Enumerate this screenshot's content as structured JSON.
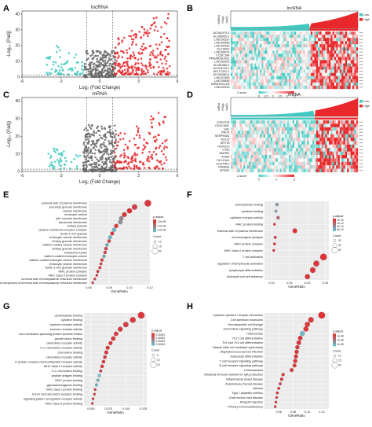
{
  "panel_letters": [
    "A",
    "B",
    "C",
    "D",
    "E",
    "F",
    "G",
    "H"
  ],
  "colors": {
    "up": "#e8282b",
    "down": "#3fc9c0",
    "ns": "#6a6a6a",
    "low": "#3fc9c0",
    "high": "#e8282b",
    "heat_low": "#3fc9c0",
    "heat_mid": "#ffffff",
    "heat_high": "#e8282b",
    "dot_high": "#e8282b",
    "dot_low": "#5fc9d8"
  },
  "chart_data": [
    {
      "type": "scatter",
      "panel": "A",
      "title": "lncRNA",
      "xlabel": "Log₂ (Fold Change)",
      "ylabel": "-Log₁₀ (Padj)",
      "xlim": [
        -6,
        6
      ],
      "ylim": [
        0,
        42
      ],
      "xticks": [
        "-6",
        "-3",
        "0",
        "3",
        "6"
      ],
      "yticks": [
        "0",
        "10",
        "20",
        "30",
        "40"
      ],
      "thresholds": {
        "x": [
          -1,
          1
        ],
        "y": 1.3
      },
      "groups": [
        {
          "name": "",
          "color_key": "down",
          "xrange": [
            -4.2,
            -1.05
          ],
          "yrange": [
            1.5,
            22
          ],
          "count": 70
        },
        {
          "name": "",
          "color_key": "ns",
          "xrange": [
            -1.2,
            1.2
          ],
          "yrange": [
            0,
            14
          ],
          "count": 260
        },
        {
          "name": "",
          "color_key": "up",
          "xrange": [
            1.05,
            5.4
          ],
          "yrange": [
            1.5,
            38
          ],
          "count": 260
        }
      ]
    },
    {
      "type": "heatmap",
      "panel": "B",
      "title": "lncRNA",
      "top_ylabel": "lncRNA\nHSgo\n(log2)",
      "legend": [
        "Low",
        "High"
      ],
      "colorbar_label": "Z-score",
      "colorbar_ticks": [
        "-5",
        "-2.5",
        "0",
        "2.5",
        "5",
        "7.5"
      ],
      "rows": [
        "AC061975.1",
        "AL356055.1",
        "LINC00337",
        "LINC00558",
        "LINC02432",
        "SLC26A7",
        "LINC00974",
        "CCDC184",
        "PRKAR2B-AS1",
        "LINC00592",
        "AL451085.1",
        "AC015725.1",
        "AP127332.1",
        "AC092580.4",
        "LINC01285",
        "LINC00858",
        "MIR31HG-AS",
        "LINC00933"
      ],
      "sig": "***",
      "low_fraction": 0.62
    },
    {
      "type": "scatter",
      "panel": "C",
      "title": "mRNA",
      "xlabel": "Log₂ (Fold Change)",
      "ylabel": "-Log₁₀ (Padj)",
      "xlim": [
        -6,
        6
      ],
      "ylim": [
        0,
        42
      ],
      "xticks": [
        "-6",
        "-3",
        "0",
        "3",
        "6"
      ],
      "yticks": [
        "0",
        "10",
        "20",
        "30",
        "40"
      ],
      "thresholds": {
        "x": [
          -1,
          1
        ],
        "y": 1.3
      },
      "groups": [
        {
          "name": "",
          "color_key": "down",
          "xrange": [
            -4.0,
            -1.05
          ],
          "yrange": [
            1.5,
            14
          ],
          "count": 45
        },
        {
          "name": "",
          "color_key": "ns",
          "xrange": [
            -1.3,
            1.3
          ],
          "yrange": [
            0,
            22
          ],
          "count": 330
        },
        {
          "name": "",
          "color_key": "up",
          "xrange": [
            1.05,
            5.2
          ],
          "yrange": [
            1.5,
            32
          ],
          "count": 170
        }
      ]
    },
    {
      "type": "heatmap",
      "panel": "D",
      "title": "mRNA",
      "top_ylabel": "mRNA\nHSgo\n(log2)",
      "legend": [
        "Low",
        "High"
      ],
      "colorbar_label": "Z-score",
      "colorbar_ticks": [
        "-5",
        "0",
        "5"
      ],
      "rows": [
        "LGALS14",
        "CEACAM7",
        "GAL",
        "PNCK",
        "SERPINA1",
        "TEX15",
        "KRT78",
        "HOXD10",
        "CT83",
        "AMHR1",
        "AGR2",
        "SLC13A1",
        "C1QTNF2",
        "FAM83E",
        "SPRR2"
      ],
      "sig": "***",
      "low_fraction": 0.66
    },
    {
      "type": "scatter",
      "panel": "E",
      "subtype": "dotplot",
      "xlabel": "GeneRatio",
      "xlim": [
        0.06,
        0.12
      ],
      "xticks": [
        "0.06",
        "0.08",
        "0.10",
        "0.12"
      ],
      "color_legend_title": "p.adjust",
      "color_legend_ticks": [
        "1.0e-06",
        "2.0e-06",
        "3.0e-06"
      ],
      "size_legend_title": "Count",
      "size_legend_ticks": [
        "10",
        "15",
        "20"
      ],
      "categories": [
        "external side of plasma membrane",
        "secretory granule membrane",
        "vesicle membrane",
        "endocytic vesicle",
        "lytic vacuole membrane",
        "lysosomal membrane",
        "tertiary granule",
        "plasma membrane receptor complex",
        "ficolin-1-rich granule",
        "endocytic vesicle membrane",
        "tertiary granule membrane",
        "clathrin-coated vesicle membrane",
        "tertiary granule membrane",
        "endosome lumen",
        "clathrin-coated endocytic vesicle",
        "clathrin-coated endocytic vesicle membrane",
        "endocytic vesicle membrane",
        "ficolin-1-rich granule membrane",
        "MHC protein complex",
        "MHC class II protein complex",
        "lumenal side of endoplasmic reticulum membrane",
        "integral component of lumenal side of endoplasmic reticulum membrane"
      ],
      "x": [
        0.118,
        0.105,
        0.1,
        0.095,
        0.092,
        0.091,
        0.087,
        0.085,
        0.083,
        0.081,
        0.08,
        0.078,
        0.077,
        0.076,
        0.075,
        0.073,
        0.072,
        0.071,
        0.069,
        0.068,
        0.066,
        0.064
      ],
      "size": [
        22,
        18,
        17,
        16,
        15,
        15,
        14,
        14,
        13,
        13,
        12,
        12,
        12,
        11,
        11,
        11,
        10,
        10,
        10,
        9,
        9,
        9
      ],
      "p_rank": [
        0.9,
        0.85,
        0.95,
        0.9,
        0.4,
        0.35,
        0.9,
        0.1,
        0.9,
        0.1,
        0.8,
        0.15,
        0.85,
        0.9,
        0.2,
        0.9,
        0.85,
        0.9,
        0.9,
        0.9,
        0.85,
        0.8
      ]
    },
    {
      "type": "scatter",
      "panel": "F",
      "subtype": "dotplot",
      "xlabel": "GeneRatio",
      "xlim": [
        0.08,
        0.26
      ],
      "xticks": [
        "0.10",
        "0.15",
        "0.20",
        "0.25"
      ],
      "color_legend_title": "p.adjust",
      "color_legend_ticks": [
        "2e-10",
        "4e-10",
        "6e-10",
        "8e-10"
      ],
      "size_legend_title": "Count",
      "size_legend_ticks": [
        "20",
        "30",
        "40"
      ],
      "categories": [
        "carbohydrate binding",
        "cytokine binding",
        "cytokine receptor activity",
        "MHC protein binding",
        "external side of plasma membrane",
        "immunological synapse",
        "MHC protein complex",
        "MHC class II protein complex",
        "T cell activation",
        "regulation of lymphocyte activation",
        "lymphocyte differentiation",
        "leukocyte cell-cell adhesion"
      ],
      "x": [
        0.115,
        0.112,
        0.118,
        0.108,
        0.165,
        0.11,
        0.108,
        0.106,
        0.245,
        0.225,
        0.215,
        0.2
      ],
      "size": [
        22,
        20,
        23,
        18,
        32,
        20,
        19,
        18,
        45,
        40,
        38,
        35
      ],
      "p_rank": [
        0.3,
        0.2,
        0.6,
        0.9,
        0.95,
        0.9,
        0.9,
        0.9,
        0.95,
        0.9,
        0.9,
        0.9
      ]
    },
    {
      "type": "scatter",
      "panel": "G",
      "subtype": "dotplot",
      "xlabel": "GeneRatio",
      "xlim": [
        0.04,
        0.13
      ],
      "xticks": [
        "0.050",
        "0.075",
        "0.100",
        "0.125"
      ],
      "color_legend_title": "p.adjust",
      "color_legend_ticks": [
        "0.00001",
        "0.00002",
        "0.00003",
        "0.00004"
      ],
      "size_legend_title": "Count",
      "size_legend_ticks": [
        "5",
        "10",
        "15"
      ],
      "categories": [
        "carbohydrate binding",
        "cytokine binding",
        "cytokine receptor activity",
        "immune receptor activity",
        "non-membrane spanning protein tyrosine kinase",
        "growth factor binding",
        "chemokine receptor activity",
        "C-C chemokine receptor activity",
        "chemokine binding",
        "chemokine receptor activity",
        "G protein-coupled chemoattractant receptor activity",
        "MHC class II receptor activity",
        "C-C chemokine binding",
        "peptide antigen binding",
        "MHC protein binding",
        "glycosaminoglycan binding",
        "MHC class I protein binding",
        "tumor necrosis factor receptor binding",
        "signaling pattern recognition receptor activity",
        "MHC class II protein binding"
      ],
      "x": [
        0.122,
        0.11,
        0.1,
        0.092,
        0.086,
        0.082,
        0.078,
        0.074,
        0.072,
        0.07,
        0.068,
        0.066,
        0.064,
        0.062,
        0.06,
        0.058,
        0.056,
        0.055,
        0.053,
        0.052
      ],
      "size": [
        15,
        13,
        12,
        11,
        10,
        10,
        9,
        9,
        9,
        8,
        8,
        8,
        7,
        7,
        7,
        7,
        6,
        6,
        6,
        6
      ],
      "p_rank": [
        0.9,
        0.9,
        0.85,
        0.9,
        0.9,
        0.9,
        0.9,
        0.9,
        0.9,
        0.9,
        0.9,
        0.9,
        0.85,
        0.1,
        0.15,
        0.1,
        0.85,
        0.9,
        0.9,
        0.9
      ]
    },
    {
      "type": "scatter",
      "panel": "H",
      "subtype": "dotplot",
      "xlabel": "GeneRatio",
      "xlim": [
        0.04,
        0.13
      ],
      "xticks": [
        "0.06",
        "0.08",
        "0.10",
        "0.12"
      ],
      "color_legend_title": "p.adjust",
      "color_legend_ticks": [
        "1e-08",
        "2e-08",
        "3e-08"
      ],
      "size_legend_title": "Count",
      "size_legend_ticks": [
        "10",
        "15",
        "20"
      ],
      "categories": [
        "Cytokine-cytokine receptor interaction",
        "Cell adhesion molecules",
        "Hematopoietic cell lineage",
        "Chemokine signaling pathway",
        "Tuberculosis",
        "Th17 cell differentiation",
        "Th1 and Th2 cell differentiation",
        "Natural killer cell mediated cytotoxicity",
        "Staphylococcus aureus infection",
        "Osteoclast differentiation",
        "T cell receptor signaling pathway",
        "B cell receptor signaling pathway",
        "Leishmaniasis",
        "Intestinal immune network for IgA production",
        "Inflammatory bowel disease",
        "Autoimmune thyroid disease",
        "Asthma",
        "Type I diabetes mellitus",
        "Graft-versus-host disease",
        "Allograft rejection",
        "Primary immunodeficiency"
      ],
      "x": [
        0.12,
        0.105,
        0.1,
        0.098,
        0.093,
        0.09,
        0.088,
        0.086,
        0.085,
        0.084,
        0.083,
        0.082,
        0.078,
        0.066,
        0.064,
        0.062,
        0.06,
        0.058,
        0.057,
        0.056,
        0.055
      ],
      "size": [
        22,
        18,
        17,
        17,
        16,
        15,
        15,
        14,
        14,
        14,
        14,
        13,
        13,
        11,
        11,
        10,
        10,
        10,
        9,
        9,
        9
      ],
      "p_rank": [
        0.95,
        0.9,
        0.9,
        0.9,
        0.1,
        0.95,
        0.95,
        0.9,
        0.9,
        0.9,
        0.9,
        0.9,
        0.9,
        0.9,
        0.9,
        0.9,
        0.9,
        0.9,
        0.9,
        0.9,
        0.9
      ]
    }
  ]
}
